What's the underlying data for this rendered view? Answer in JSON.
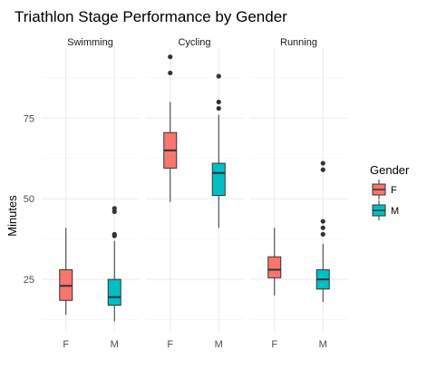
{
  "chart_data": {
    "type": "boxplot",
    "title": "Triathlon Stage Performance by Gender",
    "ylabel": "Minutes",
    "xlabel": "",
    "ylim": [
      9,
      97
    ],
    "yticks": [
      25,
      50,
      75
    ],
    "categories": [
      "F",
      "M"
    ],
    "grid": true,
    "legend": {
      "title": "Gender",
      "position": "right",
      "entries": [
        {
          "label": "F",
          "color": "#F8766D"
        },
        {
          "label": "M",
          "color": "#00BFC4"
        }
      ]
    },
    "panels": [
      {
        "name": "Swimming",
        "boxes": [
          {
            "category": "F",
            "min": 14,
            "q1": 18.5,
            "median": 23,
            "q3": 28,
            "max": 41,
            "outliers": []
          },
          {
            "category": "M",
            "min": 12,
            "q1": 17,
            "median": 19.5,
            "q3": 25,
            "max": 37,
            "outliers": [
              38.5,
              39,
              46,
              47
            ]
          }
        ]
      },
      {
        "name": "Cycling",
        "boxes": [
          {
            "category": "F",
            "min": 49,
            "q1": 59.5,
            "median": 65,
            "q3": 70.5,
            "max": 80,
            "outliers": [
              89,
              94
            ]
          },
          {
            "category": "M",
            "min": 41,
            "q1": 51,
            "median": 58,
            "q3": 61,
            "max": 76,
            "outliers": [
              78,
              80,
              88
            ]
          }
        ]
      },
      {
        "name": "Running",
        "boxes": [
          {
            "category": "F",
            "min": 20,
            "q1": 25.5,
            "median": 28,
            "q3": 32,
            "max": 41,
            "outliers": []
          },
          {
            "category": "M",
            "min": 18,
            "q1": 22,
            "median": 25,
            "q3": 28,
            "max": 36,
            "outliers": [
              39,
              41,
              43,
              59,
              61
            ]
          }
        ]
      }
    ]
  }
}
